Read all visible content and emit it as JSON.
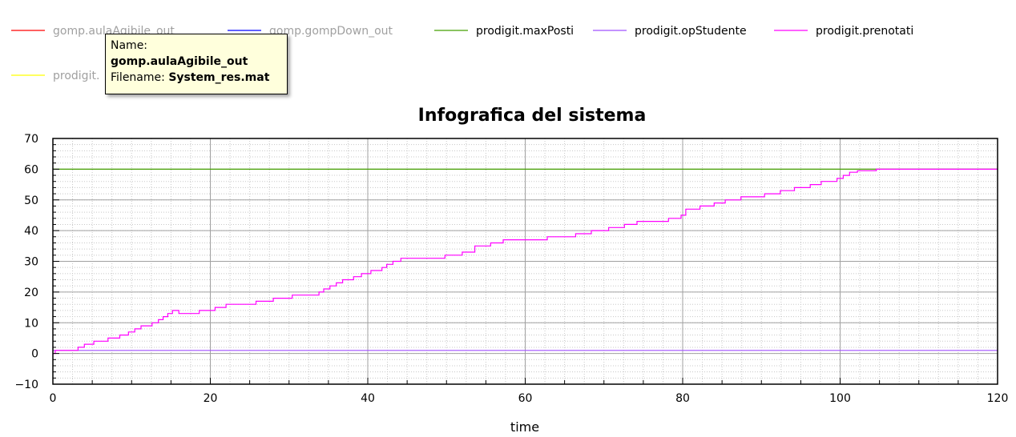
{
  "legend": [
    {
      "name": "gomp.aulaAgibile_out",
      "color": "#ff0000",
      "dimmed": true
    },
    {
      "name": "gomp.gompDown_out",
      "color": "#0000ff",
      "dimmed": true
    },
    {
      "name": "prodigit.maxPosti",
      "color": "#44a000",
      "dimmed": false
    },
    {
      "name": "prodigit.opStudente",
      "color": "#a050ff",
      "dimmed": false
    },
    {
      "name": "prodigit.prenotati",
      "color": "#ff00ff",
      "dimmed": false
    },
    {
      "name": "prodigit.",
      "color": "#ffff00",
      "dimmed": true
    }
  ],
  "tooltip": {
    "name_label": "Name:",
    "name_value": "gomp.aulaAgibile_out",
    "filename_label": "Filename:",
    "filename_value": "System_res.mat"
  },
  "chart_data": {
    "type": "line",
    "title": "Infografica del sistema",
    "xlabel": "time",
    "ylabel": "",
    "xlim": [
      0,
      120
    ],
    "ylim": [
      -10,
      70
    ],
    "xticks": [
      0,
      20,
      40,
      60,
      80,
      100,
      120
    ],
    "yticks": [
      -10,
      0,
      10,
      20,
      30,
      40,
      50,
      60,
      70
    ],
    "grid": true,
    "legend_position": "top",
    "series": [
      {
        "name": "prodigit.maxPosti",
        "color": "#44a000",
        "step": true,
        "x": [
          0,
          120
        ],
        "y": [
          60,
          60
        ]
      },
      {
        "name": "prodigit.opStudente",
        "color": "#a050ff",
        "step": true,
        "x": [
          0,
          120
        ],
        "y": [
          1,
          1
        ]
      },
      {
        "name": "prodigit.prenotati",
        "color": "#ff00ff",
        "step": true,
        "x": [
          0,
          0.3,
          3.2,
          4,
          5.2,
          7,
          8.5,
          9.6,
          10.4,
          11.2,
          12.6,
          13.4,
          14,
          14.6,
          15.2,
          16,
          18.6,
          20.6,
          22,
          25.8,
          28,
          30.4,
          33.8,
          34.4,
          35.2,
          36,
          36.8,
          38.2,
          39.2,
          40.4,
          41.8,
          42.4,
          43.2,
          44.2,
          49.8,
          52,
          53.6,
          55.6,
          57.2,
          62.8,
          66.4,
          68.4,
          70.6,
          72.6,
          74.2,
          78.2,
          79.8,
          80.4,
          82.2,
          84,
          85.4,
          87.4,
          90.4,
          92.4,
          94.2,
          96.2,
          97.6,
          99.6,
          100.4,
          101.2,
          102.2,
          104.6,
          120
        ],
        "y": [
          0,
          1,
          2,
          3,
          4,
          5,
          6,
          7,
          8,
          9,
          10,
          11,
          12,
          13,
          14,
          13,
          14,
          15,
          16,
          17,
          18,
          19,
          20,
          21,
          22,
          23,
          24,
          25,
          26,
          27,
          28,
          29,
          30,
          31,
          32,
          33,
          35,
          36,
          37,
          38,
          39,
          40,
          41,
          42,
          43,
          44,
          45,
          47,
          48,
          49,
          50,
          51,
          52,
          53,
          54,
          55,
          56,
          57,
          58,
          59,
          59.5,
          60,
          60
        ]
      }
    ]
  }
}
